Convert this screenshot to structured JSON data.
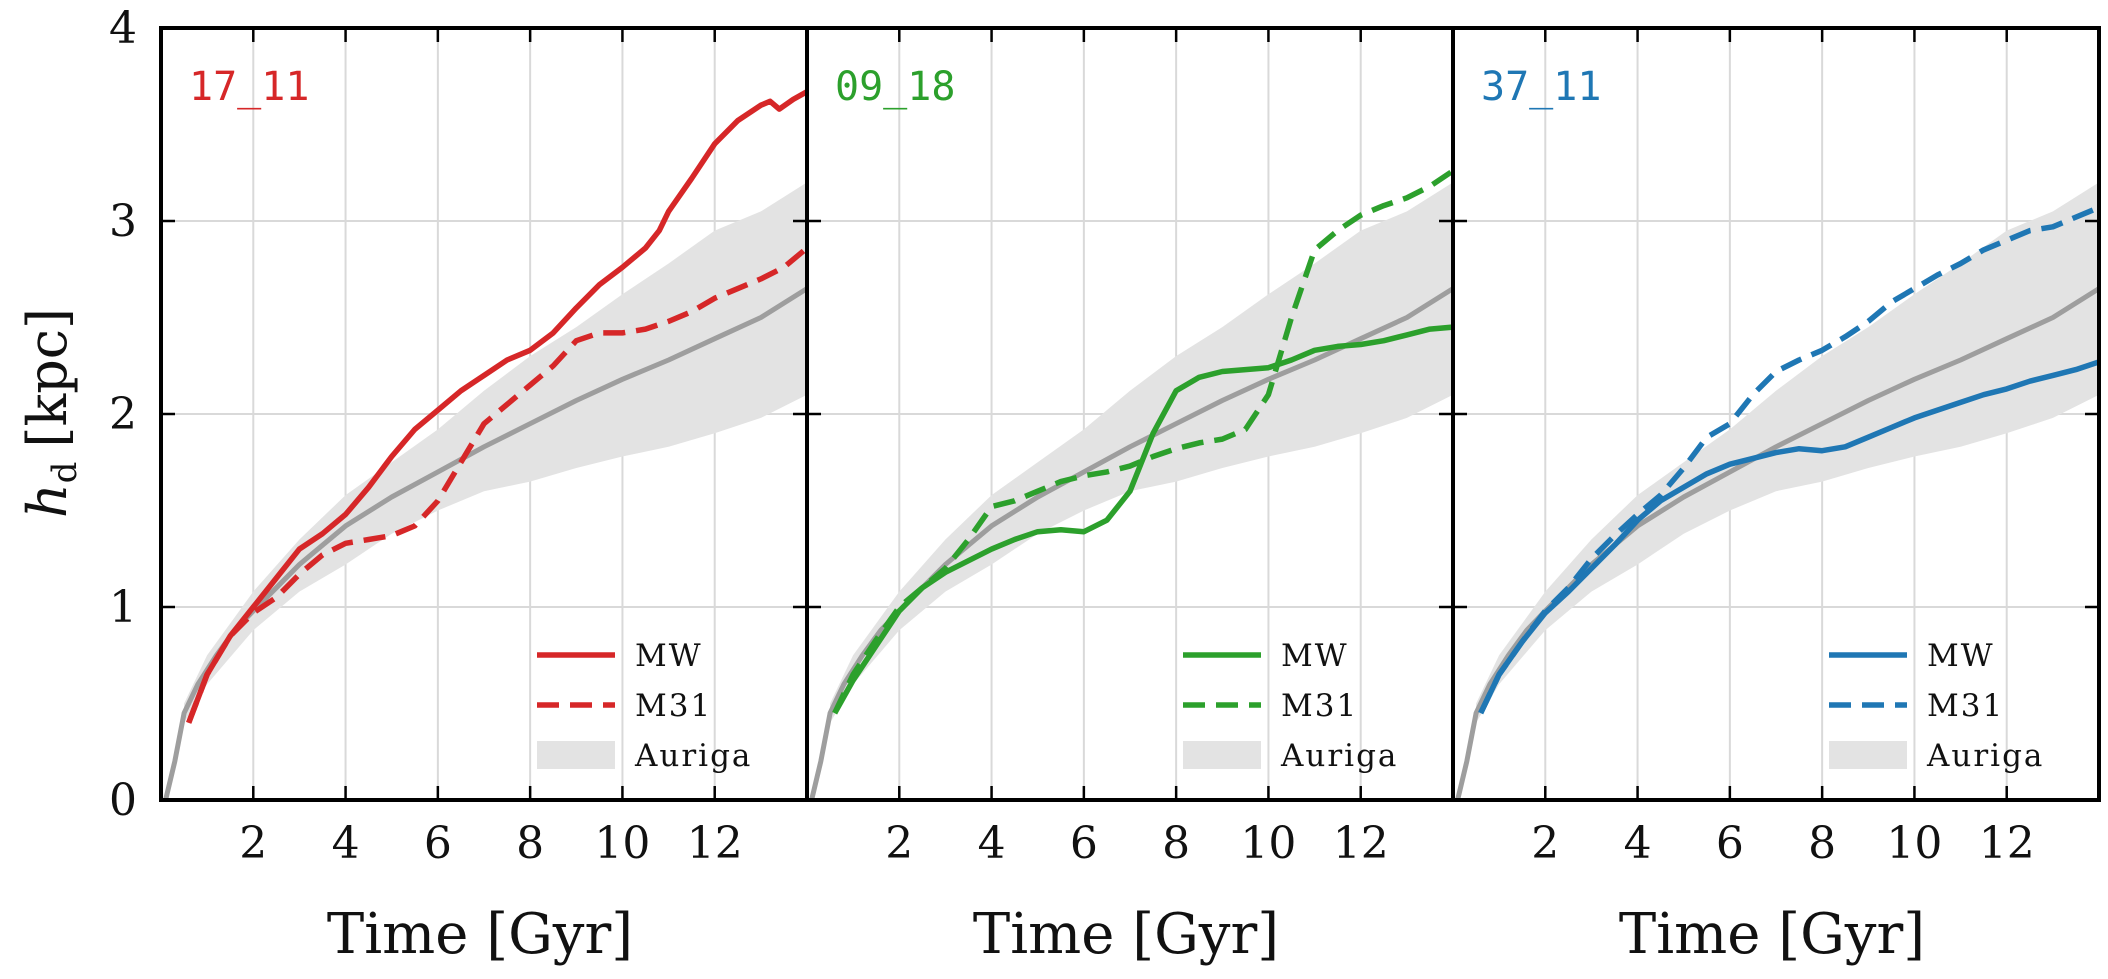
{
  "chart_data": {
    "type": "line",
    "ylabel_main": "h",
    "ylabel_sub": "d",
    "ylabel_unit": "[kpc]",
    "xlabel": "Time [Gyr]",
    "xlim": [
      0,
      14
    ],
    "ylim": [
      0,
      4
    ],
    "xticks": [
      2,
      4,
      6,
      8,
      10,
      12
    ],
    "yticks": [
      0,
      1,
      2,
      3,
      4
    ],
    "grid": true,
    "legend_position": "bottom-right",
    "legend": {
      "mw": "MW",
      "m31": "M31",
      "auriga": "Auriga"
    },
    "auriga": {
      "color": "#9e9e9e",
      "band_color": "#e3e3e3",
      "median": {
        "x": [
          0.1,
          0.3,
          0.5,
          0.8,
          1.2,
          1.6,
          2.0,
          2.5,
          3.0,
          3.5,
          4.0,
          5.0,
          6.0,
          7.0,
          8.0,
          9.0,
          10.0,
          11.0,
          12.0,
          13.0,
          14.0
        ],
        "y": [
          0.0,
          0.2,
          0.45,
          0.6,
          0.75,
          0.88,
          0.98,
          1.1,
          1.22,
          1.32,
          1.42,
          1.57,
          1.7,
          1.83,
          1.95,
          2.07,
          2.18,
          2.28,
          2.39,
          2.5,
          2.65
        ]
      },
      "band_x": [
        0.5,
        1.0,
        2.0,
        3.0,
        4.0,
        5.0,
        6.0,
        7.0,
        8.0,
        9.0,
        10.0,
        11.0,
        12.0,
        13.0,
        14.0
      ],
      "band_low": [
        0.4,
        0.6,
        0.88,
        1.08,
        1.22,
        1.38,
        1.5,
        1.6,
        1.65,
        1.72,
        1.78,
        1.83,
        1.9,
        1.98,
        2.1
      ],
      "band_high": [
        0.5,
        0.75,
        1.08,
        1.35,
        1.58,
        1.75,
        1.92,
        2.12,
        2.3,
        2.45,
        2.62,
        2.78,
        2.95,
        3.05,
        3.2
      ]
    },
    "panels": [
      {
        "title": "17_11",
        "color": "#d62728",
        "series": [
          {
            "name": "MW",
            "style": "solid",
            "x": [
              0.6,
              1.0,
              1.5,
              2.0,
              2.5,
              3.0,
              3.5,
              4.0,
              4.5,
              5.0,
              5.5,
              6.0,
              6.5,
              7.0,
              7.5,
              8.0,
              8.5,
              9.0,
              9.5,
              10.0,
              10.5,
              10.8,
              11.0,
              11.5,
              12.0,
              12.5,
              13.0,
              13.2,
              13.4,
              13.7,
              14.0
            ],
            "y": [
              0.4,
              0.65,
              0.85,
              1.0,
              1.15,
              1.3,
              1.38,
              1.48,
              1.62,
              1.78,
              1.92,
              2.02,
              2.12,
              2.2,
              2.28,
              2.33,
              2.42,
              2.55,
              2.67,
              2.76,
              2.86,
              2.95,
              3.05,
              3.22,
              3.4,
              3.52,
              3.6,
              3.62,
              3.58,
              3.63,
              3.67
            ]
          },
          {
            "name": "M31",
            "style": "dashed",
            "x": [
              0.6,
              1.0,
              1.5,
              2.0,
              2.5,
              3.0,
              3.5,
              4.0,
              4.5,
              5.0,
              5.5,
              6.0,
              6.5,
              7.0,
              7.5,
              8.0,
              8.5,
              9.0,
              9.5,
              10.0,
              10.5,
              11.0,
              11.5,
              12.0,
              12.5,
              13.0,
              13.5,
              14.0
            ],
            "y": [
              0.4,
              0.65,
              0.85,
              0.97,
              1.05,
              1.17,
              1.27,
              1.33,
              1.35,
              1.37,
              1.42,
              1.55,
              1.75,
              1.95,
              2.05,
              2.15,
              2.25,
              2.38,
              2.42,
              2.42,
              2.44,
              2.48,
              2.53,
              2.6,
              2.65,
              2.7,
              2.76,
              2.86
            ]
          }
        ]
      },
      {
        "title": "09_18",
        "color": "#2ca02c",
        "series": [
          {
            "name": "MW",
            "style": "solid",
            "x": [
              0.6,
              1.0,
              1.5,
              2.0,
              2.5,
              3.0,
              3.5,
              4.0,
              4.5,
              5.0,
              5.5,
              6.0,
              6.5,
              7.0,
              7.5,
              8.0,
              8.5,
              9.0,
              9.5,
              10.0,
              10.5,
              11.0,
              11.5,
              12.0,
              12.5,
              13.0,
              13.5,
              14.0
            ],
            "y": [
              0.45,
              0.62,
              0.8,
              0.98,
              1.1,
              1.18,
              1.24,
              1.3,
              1.35,
              1.39,
              1.4,
              1.39,
              1.45,
              1.6,
              1.9,
              2.12,
              2.19,
              2.22,
              2.23,
              2.24,
              2.28,
              2.33,
              2.35,
              2.36,
              2.38,
              2.41,
              2.44,
              2.45
            ]
          },
          {
            "name": "M31",
            "style": "dashed",
            "x": [
              0.6,
              1.0,
              1.5,
              2.0,
              2.5,
              3.0,
              3.5,
              4.0,
              4.5,
              5.0,
              5.5,
              6.0,
              6.5,
              7.0,
              7.5,
              8.0,
              8.5,
              9.0,
              9.5,
              10.0,
              10.5,
              11.0,
              11.5,
              12.0,
              12.5,
              13.0,
              13.5,
              14.0
            ],
            "y": [
              0.45,
              0.65,
              0.83,
              1.0,
              1.1,
              1.2,
              1.35,
              1.52,
              1.55,
              1.6,
              1.65,
              1.68,
              1.7,
              1.73,
              1.78,
              1.82,
              1.85,
              1.87,
              1.92,
              2.1,
              2.5,
              2.85,
              2.95,
              3.03,
              3.08,
              3.12,
              3.18,
              3.26
            ]
          }
        ]
      },
      {
        "title": "37_11",
        "color": "#1f77b4",
        "series": [
          {
            "name": "MW",
            "style": "solid",
            "x": [
              0.6,
              1.0,
              1.5,
              2.0,
              2.5,
              3.0,
              3.5,
              4.0,
              4.5,
              5.0,
              5.5,
              6.0,
              6.5,
              7.0,
              7.5,
              8.0,
              8.5,
              9.0,
              9.5,
              10.0,
              10.5,
              11.0,
              11.5,
              12.0,
              12.5,
              13.0,
              13.5,
              14.0
            ],
            "y": [
              0.45,
              0.65,
              0.82,
              0.97,
              1.08,
              1.2,
              1.32,
              1.45,
              1.55,
              1.62,
              1.69,
              1.74,
              1.77,
              1.8,
              1.82,
              1.81,
              1.83,
              1.88,
              1.93,
              1.98,
              2.02,
              2.06,
              2.1,
              2.13,
              2.17,
              2.2,
              2.23,
              2.27
            ]
          },
          {
            "name": "M31",
            "style": "dashed",
            "x": [
              0.6,
              1.0,
              1.5,
              2.0,
              2.5,
              3.0,
              3.5,
              4.0,
              4.5,
              5.0,
              5.5,
              6.0,
              6.5,
              7.0,
              7.5,
              8.0,
              8.5,
              9.0,
              9.5,
              10.0,
              10.5,
              11.0,
              11.5,
              12.0,
              12.5,
              13.0,
              13.5,
              14.0
            ],
            "y": [
              0.45,
              0.65,
              0.82,
              0.98,
              1.1,
              1.25,
              1.37,
              1.48,
              1.58,
              1.72,
              1.88,
              1.95,
              2.1,
              2.22,
              2.28,
              2.33,
              2.4,
              2.48,
              2.58,
              2.65,
              2.72,
              2.78,
              2.85,
              2.9,
              2.95,
              2.97,
              3.02,
              3.07
            ]
          }
        ]
      }
    ]
  }
}
